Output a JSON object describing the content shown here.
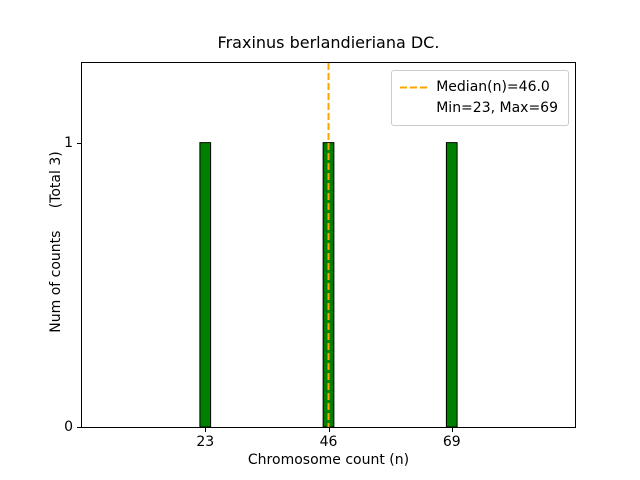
{
  "chart_data": {
    "type": "bar",
    "title": "Fraxinus berlandieriana DC.",
    "xlabel": "Chromosome count (n)",
    "ylabel": "Num of counts     (Total 3)",
    "total_label": "(Total 3)",
    "categories": [
      23,
      46,
      69
    ],
    "values": [
      1,
      1,
      1
    ],
    "bar_width_units": 2,
    "xlim": [
      0,
      92
    ],
    "ylim": [
      0,
      1.28
    ],
    "xticks": [
      {
        "value": 23,
        "label": "23"
      },
      {
        "value": 46,
        "label": "46"
      },
      {
        "value": 69,
        "label": "69"
      }
    ],
    "yticks": [
      {
        "value": 0,
        "label": "0"
      },
      {
        "value": 1,
        "label": "1"
      }
    ],
    "grid": false,
    "colors": {
      "bar_fill": "#008000",
      "bar_edge": "#000000",
      "median_line": "#FFA500",
      "legend_border": "#cccccc",
      "axis": "#000000"
    },
    "median_line": {
      "x": 46,
      "style": "dashed"
    },
    "legend": {
      "position": "upper right",
      "entries": [
        {
          "label": "Median(n)=46.0",
          "marker": "dashed-orange-line"
        },
        {
          "label": "Min=23, Max=69",
          "marker": "none"
        }
      ]
    }
  }
}
